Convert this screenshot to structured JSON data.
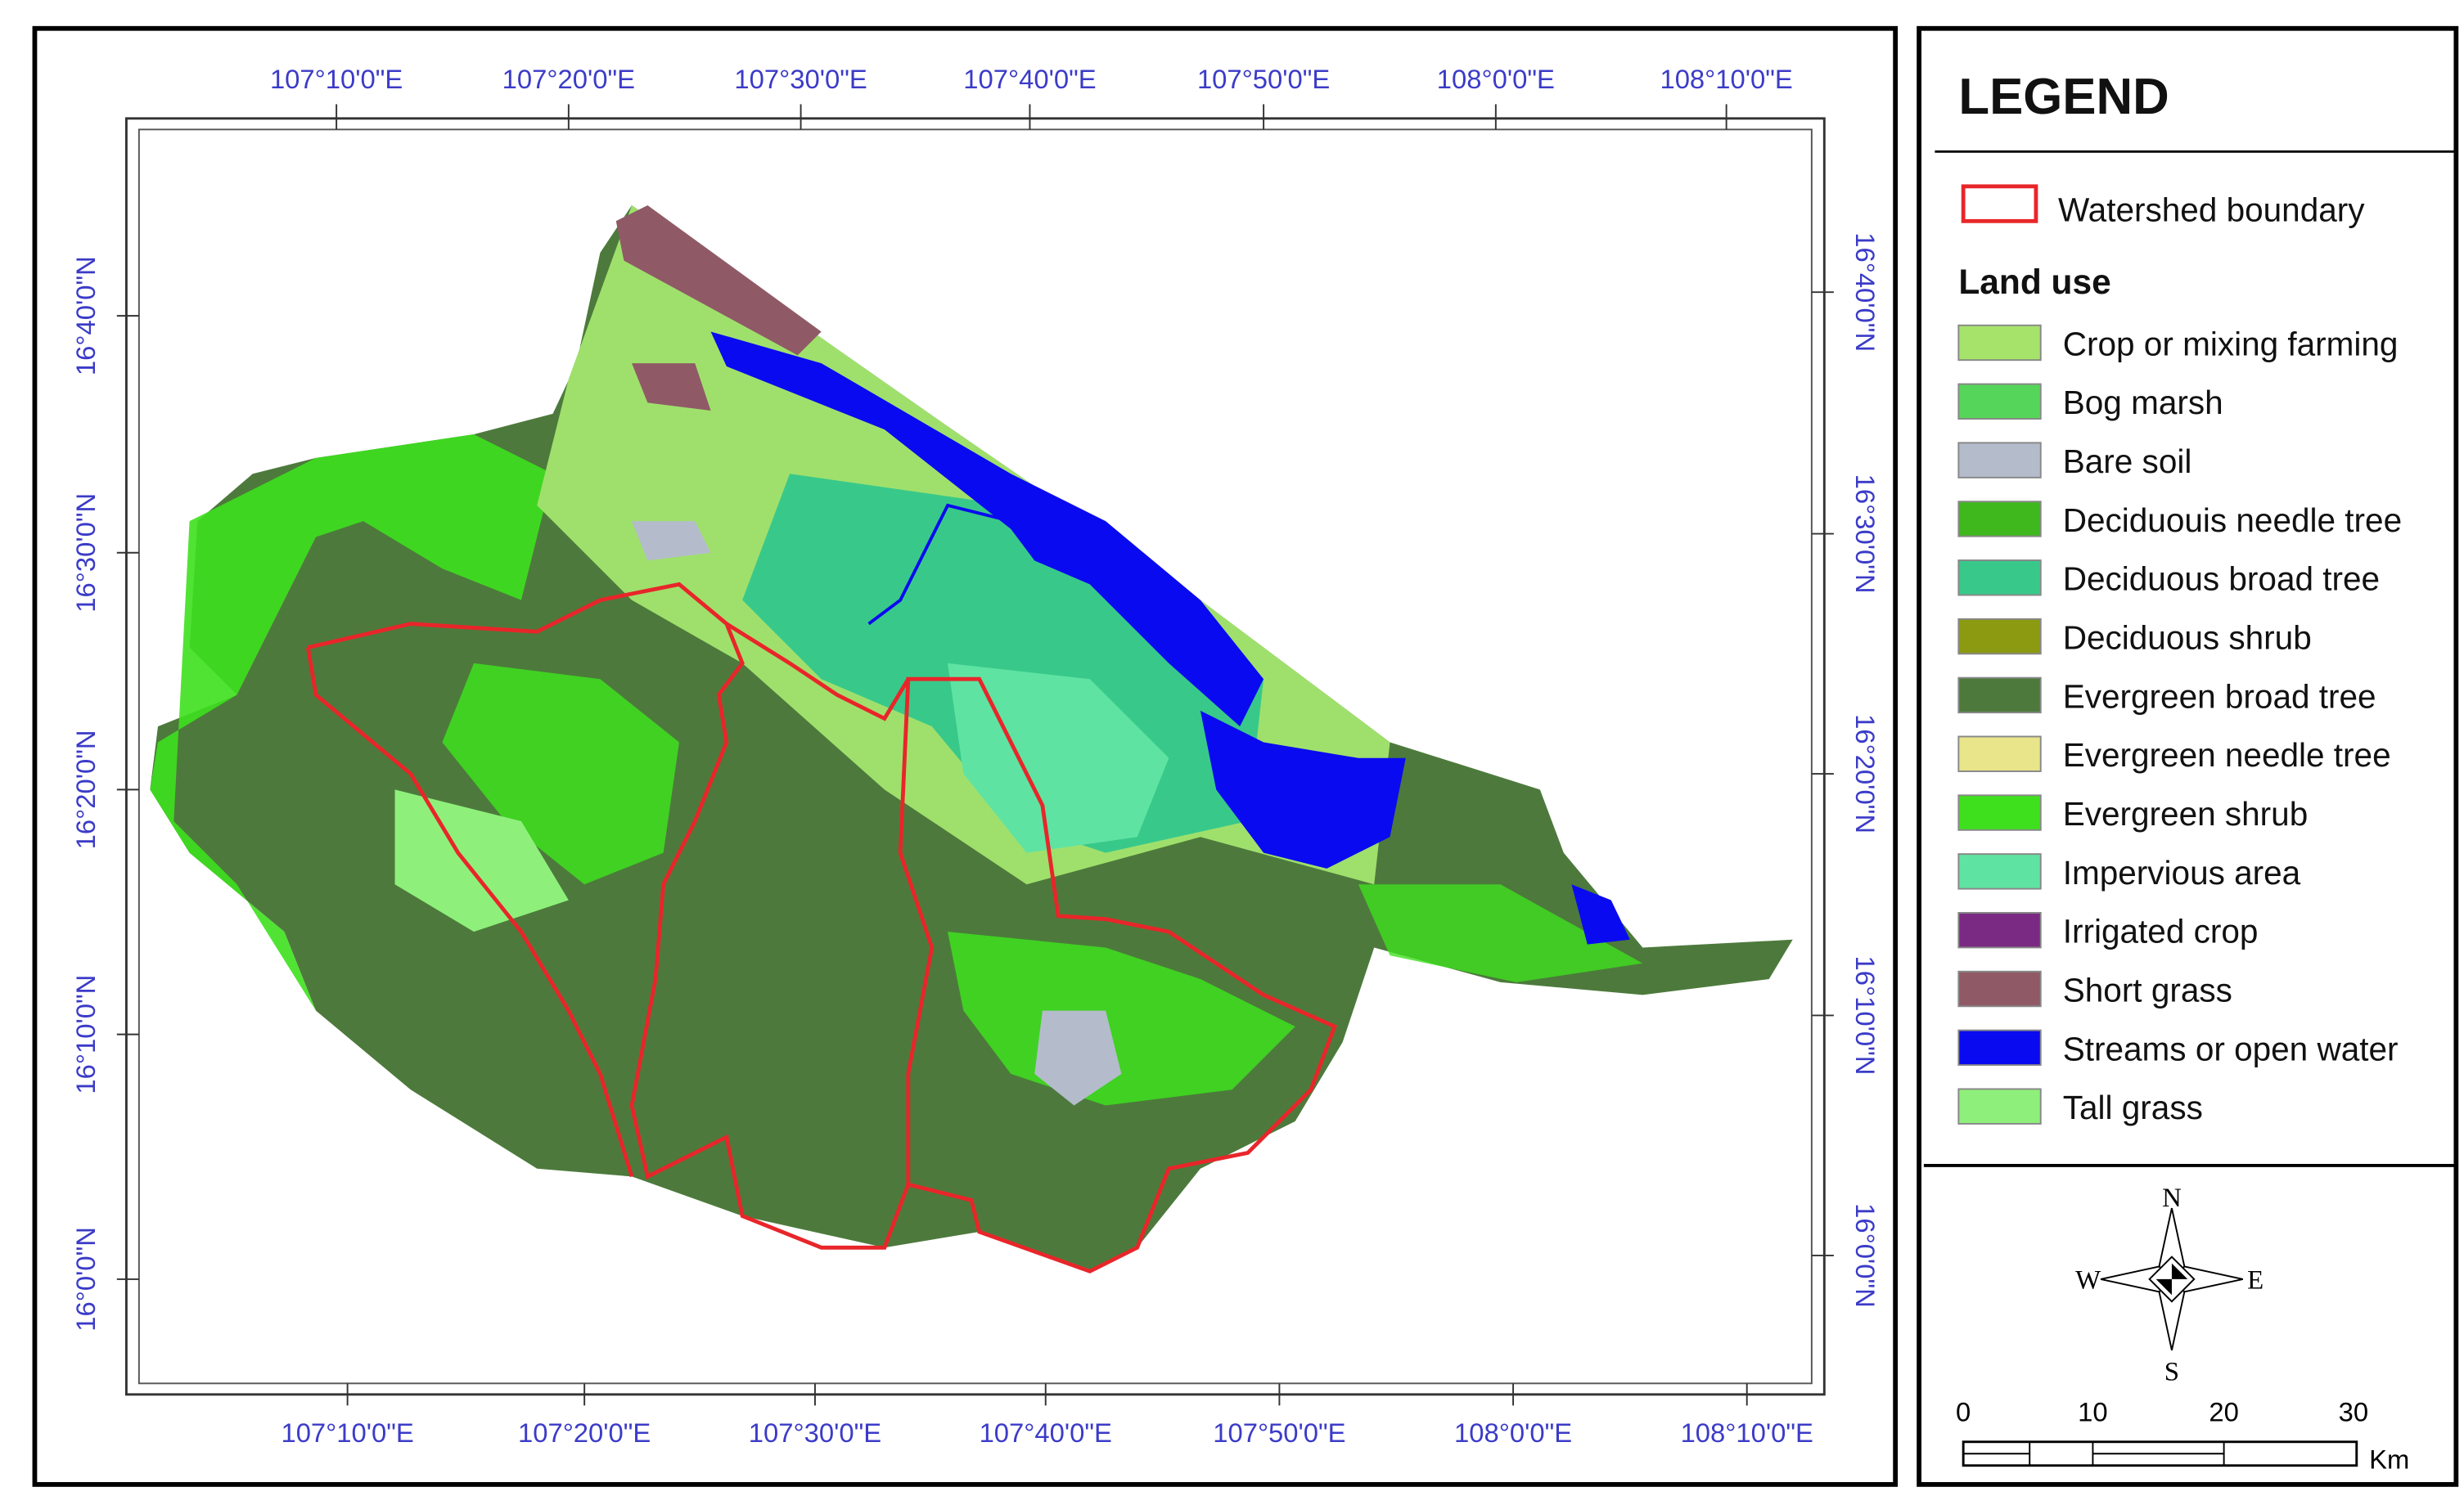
{
  "map": {
    "longitude_labels": [
      "107°10'0\"E",
      "107°20'0\"E",
      "107°30'0\"E",
      "107°40'0\"E",
      "107°50'0\"E",
      "108°0'0\"E",
      "108°10'0\"E"
    ],
    "latitude_labels": [
      "16°40'0\"N",
      "16°30'0\"N",
      "16°20'0\"N",
      "16°10'0\"N",
      "16°0'0\"N"
    ],
    "legend": {
      "title": "LEGEND",
      "boundary_label": "Watershed boundary",
      "boundary_color": "#e8262a",
      "section_title": "Land use",
      "items": [
        {
          "label": "Crop or mixing farming",
          "color": "#a6e36b"
        },
        {
          "label": "Bog marsh",
          "color": "#55d65a"
        },
        {
          "label": "Bare soil",
          "color": "#b4bccb"
        },
        {
          "label": "Deciduouis needle tree",
          "color": "#3fb81e"
        },
        {
          "label": "Deciduous broad tree",
          "color": "#38c98a"
        },
        {
          "label": "Deciduous shrub",
          "color": "#8c9a12"
        },
        {
          "label": "Evergreen broad tree",
          "color": "#4d7a3c"
        },
        {
          "label": "Evergreen needle tree",
          "color": "#e8e58a"
        },
        {
          "label": "Evergreen shrub",
          "color": "#3ee01e"
        },
        {
          "label": "Impervious area",
          "color": "#5fe3a3"
        },
        {
          "label": "Irrigated crop",
          "color": "#7a2a82"
        },
        {
          "label": "Short grass",
          "color": "#8f5a66"
        },
        {
          "label": "Streams or open water",
          "color": "#0a0af0"
        },
        {
          "label": "Tall grass",
          "color": "#8ef07a"
        }
      ]
    },
    "compass": {
      "north": "N",
      "south": "S",
      "east": "E",
      "west": "W"
    },
    "scale_bar": {
      "ticks": [
        0,
        10,
        20,
        30
      ],
      "unit": "Km"
    }
  }
}
